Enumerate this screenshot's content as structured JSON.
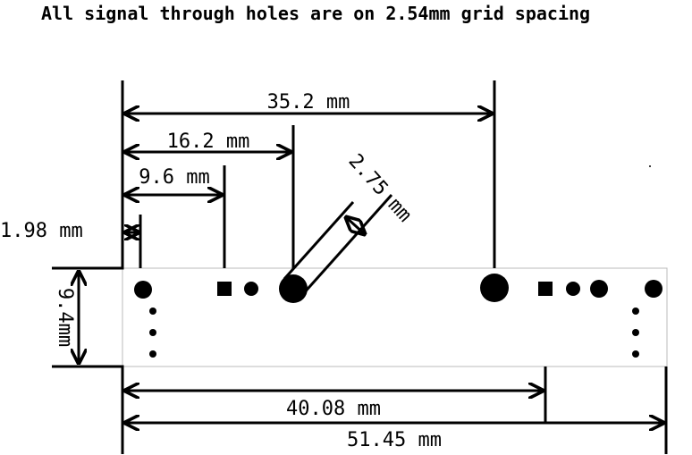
{
  "title": "All signal through holes are on 2.54mm grid spacing",
  "dimensions": {
    "d_35_2": "35.2 mm",
    "d_16_2": "16.2 mm",
    "d_9_6": "9.6 mm",
    "d_1_98": "1.98 mm",
    "d_2_75": "2.75 mm",
    "d_9_4": "9.4mm",
    "d_40_08": "40.08 mm",
    "d_51_45": "51.45 mm"
  }
}
